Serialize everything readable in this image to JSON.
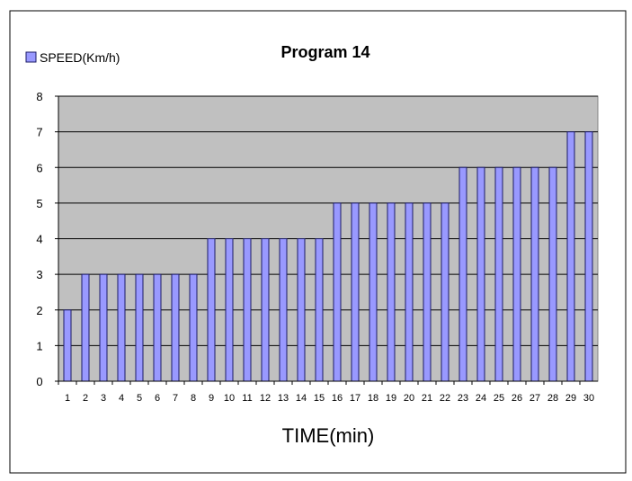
{
  "chart_data": {
    "type": "bar",
    "title": "Program 14",
    "xlabel": "TIME(min)",
    "ylabel": "",
    "legend": {
      "position": "top-left"
    },
    "categories": [
      "1",
      "2",
      "3",
      "4",
      "5",
      "6",
      "7",
      "8",
      "9",
      "10",
      "11",
      "12",
      "13",
      "14",
      "15",
      "16",
      "17",
      "18",
      "19",
      "20",
      "21",
      "22",
      "23",
      "24",
      "25",
      "26",
      "27",
      "28",
      "29",
      "30"
    ],
    "series": [
      {
        "name": "SPEED(Km/h)",
        "values": [
          2,
          3,
          3,
          3,
          3,
          3,
          3,
          3,
          4,
          4,
          4,
          4,
          4,
          4,
          4,
          5,
          5,
          5,
          5,
          5,
          5,
          5,
          6,
          6,
          6,
          6,
          6,
          6,
          7,
          7
        ]
      }
    ],
    "ylim": [
      0,
      8
    ],
    "yticks": [
      "0",
      "1",
      "2",
      "3",
      "4",
      "5",
      "6",
      "7",
      "8"
    ],
    "grid": true,
    "colors": {
      "bar_fill": "#9999ff",
      "bar_stroke": "#1a1a66",
      "plot_bg": "#c0c0c0",
      "gridline": "#000000",
      "page_bg": "#ffffff"
    }
  }
}
